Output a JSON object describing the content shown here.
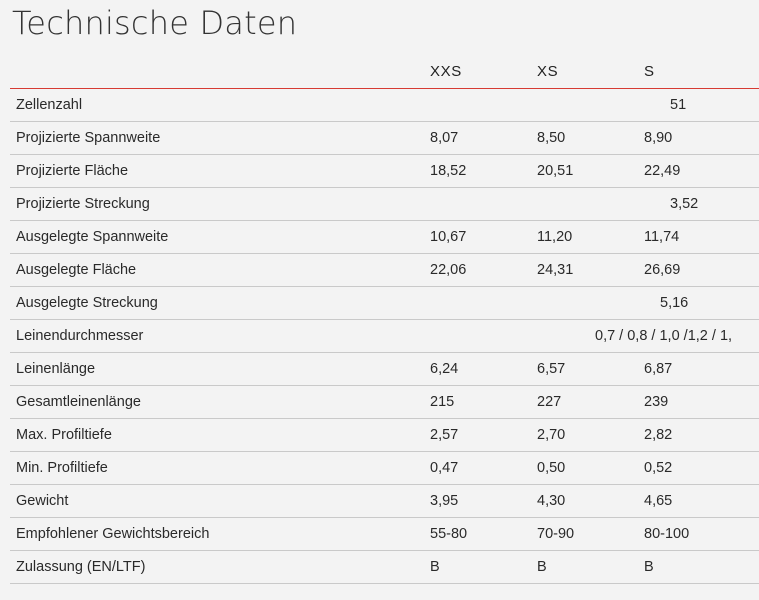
{
  "page": {
    "title": "Technische Daten"
  },
  "table": {
    "headers": [
      "",
      "XXS",
      "XS",
      "S"
    ],
    "rows": [
      {
        "label": "Zellenzahl",
        "values": null,
        "shared": "51"
      },
      {
        "label": "Projizierte Spannweite",
        "values": [
          "8,07",
          "8,50",
          "8,90"
        ]
      },
      {
        "label": "Projizierte Fläche",
        "values": [
          "18,52",
          "20,51",
          "22,49"
        ]
      },
      {
        "label": "Projizierte Streckung",
        "values": null,
        "shared": "3,52"
      },
      {
        "label": "Ausgelegte Spannweite",
        "values": [
          "10,67",
          "11,20",
          "11,74"
        ]
      },
      {
        "label": "Ausgelegte Fläche",
        "values": [
          "22,06",
          "24,31",
          "26,69"
        ]
      },
      {
        "label": "Ausgelegte Streckung",
        "values": null,
        "shared": "5,16"
      },
      {
        "label": "Leinendurchmesser",
        "values": null,
        "shared": "0,7 / 0,8 / 1,0 /1,2 / 1,"
      },
      {
        "label": "Leinenlänge",
        "values": [
          "6,24",
          "6,57",
          "6,87"
        ]
      },
      {
        "label": "Gesamtleinenlänge",
        "values": [
          "215",
          "227",
          "239"
        ]
      },
      {
        "label": "Max. Profiltiefe",
        "values": [
          "2,57",
          "2,70",
          "2,82"
        ]
      },
      {
        "label": "Min. Profiltiefe",
        "values": [
          "0,47",
          "0,50",
          "0,52"
        ]
      },
      {
        "label": "Gewicht",
        "values": [
          "3,95",
          "4,30",
          "4,65"
        ]
      },
      {
        "label": "Empfohlener Gewichtsbereich",
        "values": [
          "55-80",
          "70-90",
          "80-100"
        ]
      },
      {
        "label": "Zulassung (EN/LTF)",
        "values": [
          "B",
          "B",
          "B"
        ]
      }
    ]
  },
  "colors": {
    "accent_rule": "#d63a32",
    "row_divider": "#c9c9c9",
    "background": "#f3f3f3"
  }
}
